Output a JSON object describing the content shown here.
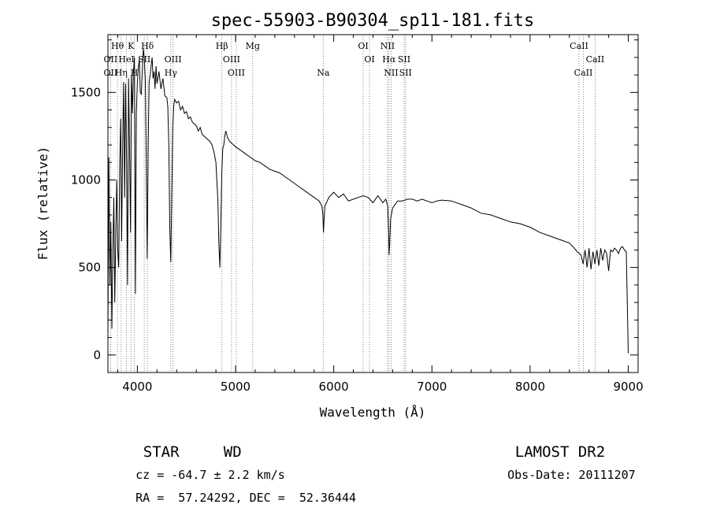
{
  "chart_data": {
    "type": "line",
    "title": "spec-55903-B90304_sp11-181.fits",
    "xlabel": "Wavelength (Å)",
    "ylabel": "Flux (relative)",
    "xlim": [
      3700,
      9100
    ],
    "ylim": [
      -100,
      1830
    ],
    "xticks": [
      4000,
      5000,
      6000,
      7000,
      8000,
      9000
    ],
    "yticks": [
      0,
      500,
      1000,
      1500
    ],
    "grid": false,
    "series": [
      {
        "x": [
          3700,
          3710,
          3720,
          3730,
          3740,
          3750,
          3760,
          3770,
          3780,
          3790,
          3800,
          3810,
          3820,
          3830,
          3840,
          3850,
          3860,
          3870,
          3880,
          3890,
          3900,
          3910,
          3920,
          3930,
          3940,
          3950,
          3960,
          3970,
          3980,
          3990,
          4000,
          4010,
          4020,
          4030,
          4040,
          4050,
          4060,
          4070,
          4080,
          4090,
          4100,
          4110,
          4120,
          4130,
          4140,
          4150,
          4160,
          4170,
          4180,
          4190,
          4200,
          4220,
          4240,
          4260,
          4280,
          4300,
          4310,
          4320,
          4330,
          4340,
          4350,
          4360,
          4370,
          4380,
          4400,
          4420,
          4440,
          4460,
          4480,
          4500,
          4520,
          4540,
          4560,
          4580,
          4600,
          4620,
          4640,
          4660,
          4680,
          4700,
          4720,
          4740,
          4760,
          4780,
          4800,
          4820,
          4830,
          4840,
          4850,
          4860,
          4870,
          4880,
          4890,
          4900,
          4920,
          4940,
          4960,
          4980,
          5000,
          5050,
          5100,
          5150,
          5200,
          5250,
          5300,
          5350,
          5400,
          5450,
          5500,
          5550,
          5600,
          5650,
          5700,
          5750,
          5800,
          5850,
          5880,
          5890,
          5895,
          5900,
          5910,
          5950,
          6000,
          6050,
          6100,
          6150,
          6200,
          6250,
          6300,
          6350,
          6400,
          6450,
          6500,
          6530,
          6550,
          6560,
          6563,
          6570,
          6580,
          6600,
          6650,
          6700,
          6750,
          6800,
          6850,
          6900,
          6950,
          7000,
          7050,
          7100,
          7200,
          7300,
          7400,
          7500,
          7600,
          7700,
          7800,
          7900,
          8000,
          8100,
          8200,
          8300,
          8400,
          8450,
          8480,
          8500,
          8520,
          8540,
          8560,
          8580,
          8600,
          8620,
          8640,
          8660,
          8680,
          8700,
          8720,
          8740,
          8760,
          8780,
          8800,
          8820,
          8840,
          8860,
          8880,
          8900,
          8920,
          8940,
          8960,
          8980,
          9000
        ],
        "y": [
          120,
          1130,
          400,
          760,
          150,
          580,
          900,
          300,
          700,
          1000,
          600,
          500,
          1100,
          1350,
          650,
          1200,
          1560,
          900,
          1550,
          1100,
          400,
          1580,
          1200,
          700,
          1600,
          1380,
          1620,
          1700,
          350,
          1380,
          1560,
          1640,
          1690,
          1500,
          1490,
          1620,
          1750,
          1700,
          1580,
          1120,
          550,
          1200,
          1560,
          1600,
          1650,
          1700,
          1580,
          1620,
          1520,
          1650,
          1550,
          1620,
          1520,
          1580,
          1480,
          1470,
          1420,
          1200,
          730,
          530,
          900,
          1300,
          1420,
          1460,
          1440,
          1450,
          1400,
          1420,
          1380,
          1390,
          1350,
          1360,
          1330,
          1320,
          1310,
          1280,
          1300,
          1260,
          1250,
          1240,
          1230,
          1220,
          1200,
          1160,
          1100,
          880,
          640,
          500,
          750,
          1050,
          1180,
          1200,
          1250,
          1280,
          1240,
          1220,
          1210,
          1200,
          1190,
          1170,
          1150,
          1130,
          1110,
          1100,
          1080,
          1060,
          1050,
          1040,
          1020,
          1000,
          980,
          960,
          940,
          920,
          900,
          880,
          850,
          800,
          700,
          760,
          850,
          900,
          930,
          900,
          920,
          880,
          890,
          900,
          910,
          900,
          870,
          910,
          870,
          890,
          850,
          700,
          570,
          640,
          780,
          840,
          880,
          880,
          890,
          890,
          880,
          890,
          880,
          870,
          880,
          885,
          880,
          860,
          840,
          810,
          800,
          780,
          760,
          750,
          730,
          700,
          680,
          660,
          640,
          610,
          590,
          580,
          570,
          520,
          600,
          500,
          610,
          490,
          590,
          520,
          600,
          510,
          610,
          540,
          600,
          580,
          480,
          600,
          590,
          610,
          600,
          580,
          610,
          620,
          600,
          590,
          10
        ]
      }
    ],
    "annotations": [
      {
        "label": "Hθ",
        "x": 3797,
        "row": 1
      },
      {
        "label": "K",
        "x": 3934,
        "row": 1
      },
      {
        "label": "Hδ",
        "x": 4102,
        "row": 1
      },
      {
        "label": "Hβ",
        "x": 4861,
        "row": 1
      },
      {
        "label": "Mg",
        "x": 5175,
        "row": 1
      },
      {
        "label": "OI",
        "x": 6300,
        "row": 1
      },
      {
        "label": "NII",
        "x": 6548,
        "row": 1
      },
      {
        "label": "CaII",
        "x": 8498,
        "row": 1
      },
      {
        "label": "OII",
        "x": 3727,
        "row": 2
      },
      {
        "label": "HeI",
        "x": 3889,
        "row": 2
      },
      {
        "label": "SII",
        "x": 4070,
        "row": 2
      },
      {
        "label": "OIII",
        "x": 4363,
        "row": 2
      },
      {
        "label": "OIII",
        "x": 4959,
        "row": 2
      },
      {
        "label": "OI",
        "x": 6364,
        "row": 2
      },
      {
        "label": "Hα",
        "x": 6563,
        "row": 2
      },
      {
        "label": "SII",
        "x": 6717,
        "row": 2
      },
      {
        "label": "CaII",
        "x": 8662,
        "row": 2
      },
      {
        "label": "OII",
        "x": 3727,
        "row": 3
      },
      {
        "label": "Hη",
        "x": 3835,
        "row": 3
      },
      {
        "label": "H",
        "x": 3969,
        "row": 3
      },
      {
        "label": "Hγ",
        "x": 4340,
        "row": 3
      },
      {
        "label": "OIII",
        "x": 5007,
        "row": 3
      },
      {
        "label": "Na",
        "x": 5893,
        "row": 3
      },
      {
        "label": "NII",
        "x": 6584,
        "row": 3
      },
      {
        "label": "SII",
        "x": 6731,
        "row": 3
      },
      {
        "label": "CaII",
        "x": 8542,
        "row": 3
      }
    ],
    "marker_lines": [
      3727,
      3797,
      3835,
      3889,
      3934,
      3969,
      4070,
      4102,
      4340,
      4363,
      4861,
      4959,
      5007,
      5175,
      5893,
      6300,
      6364,
      6548,
      6563,
      6584,
      6717,
      6731,
      8498,
      8542,
      8662
    ]
  },
  "info": {
    "object_class": "STAR",
    "subclass": "WD",
    "survey": "LAMOST DR2",
    "redshift": "cz = -64.7 ± 2.2 km/s",
    "obs_date": "Obs-Date: 20111207",
    "coords": "RA =  57.24292, DEC =  52.36444"
  }
}
